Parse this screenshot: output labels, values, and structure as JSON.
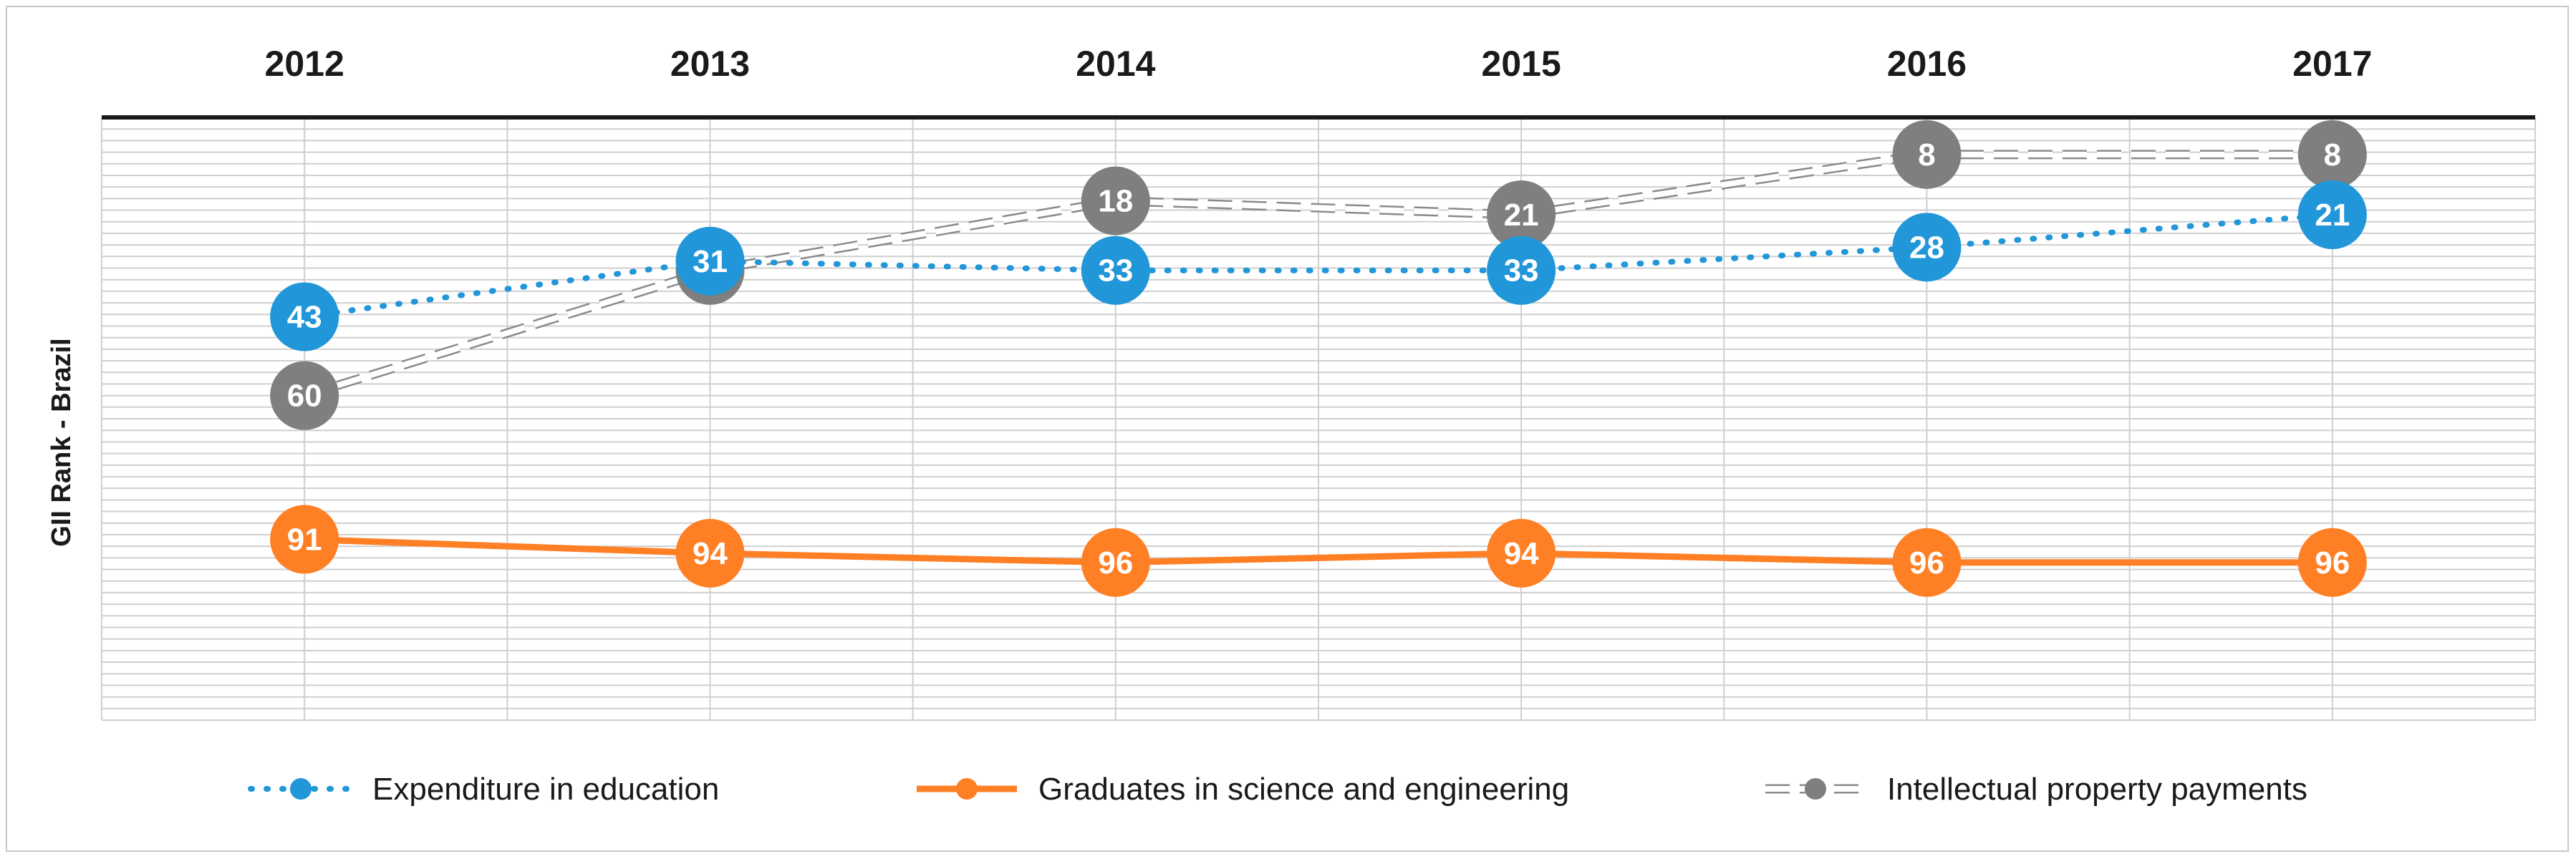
{
  "chart_data": {
    "type": "line",
    "title": "",
    "xlabel": "",
    "ylabel": "GII Rank - Brazil",
    "x": [
      "2012",
      "2013",
      "2014",
      "2015",
      "2016",
      "2017"
    ],
    "ylim": [
      0,
      130
    ],
    "y_inverted": true,
    "grid": true,
    "legend_position": "bottom",
    "series": [
      {
        "name": "Expenditure in education",
        "values": [
          43,
          31,
          33,
          33,
          28,
          21
        ],
        "color": "#2196d8",
        "style": "dotted"
      },
      {
        "name": "Graduates in science and engineering",
        "values": [
          91,
          94,
          96,
          94,
          96,
          96
        ],
        "color": "#ff7f24",
        "style": "solid"
      },
      {
        "name": "Intellectual property payments",
        "values": [
          60,
          33,
          18,
          21,
          8,
          8
        ],
        "color": "#7f7f7f",
        "style": "double-dashed"
      }
    ]
  }
}
